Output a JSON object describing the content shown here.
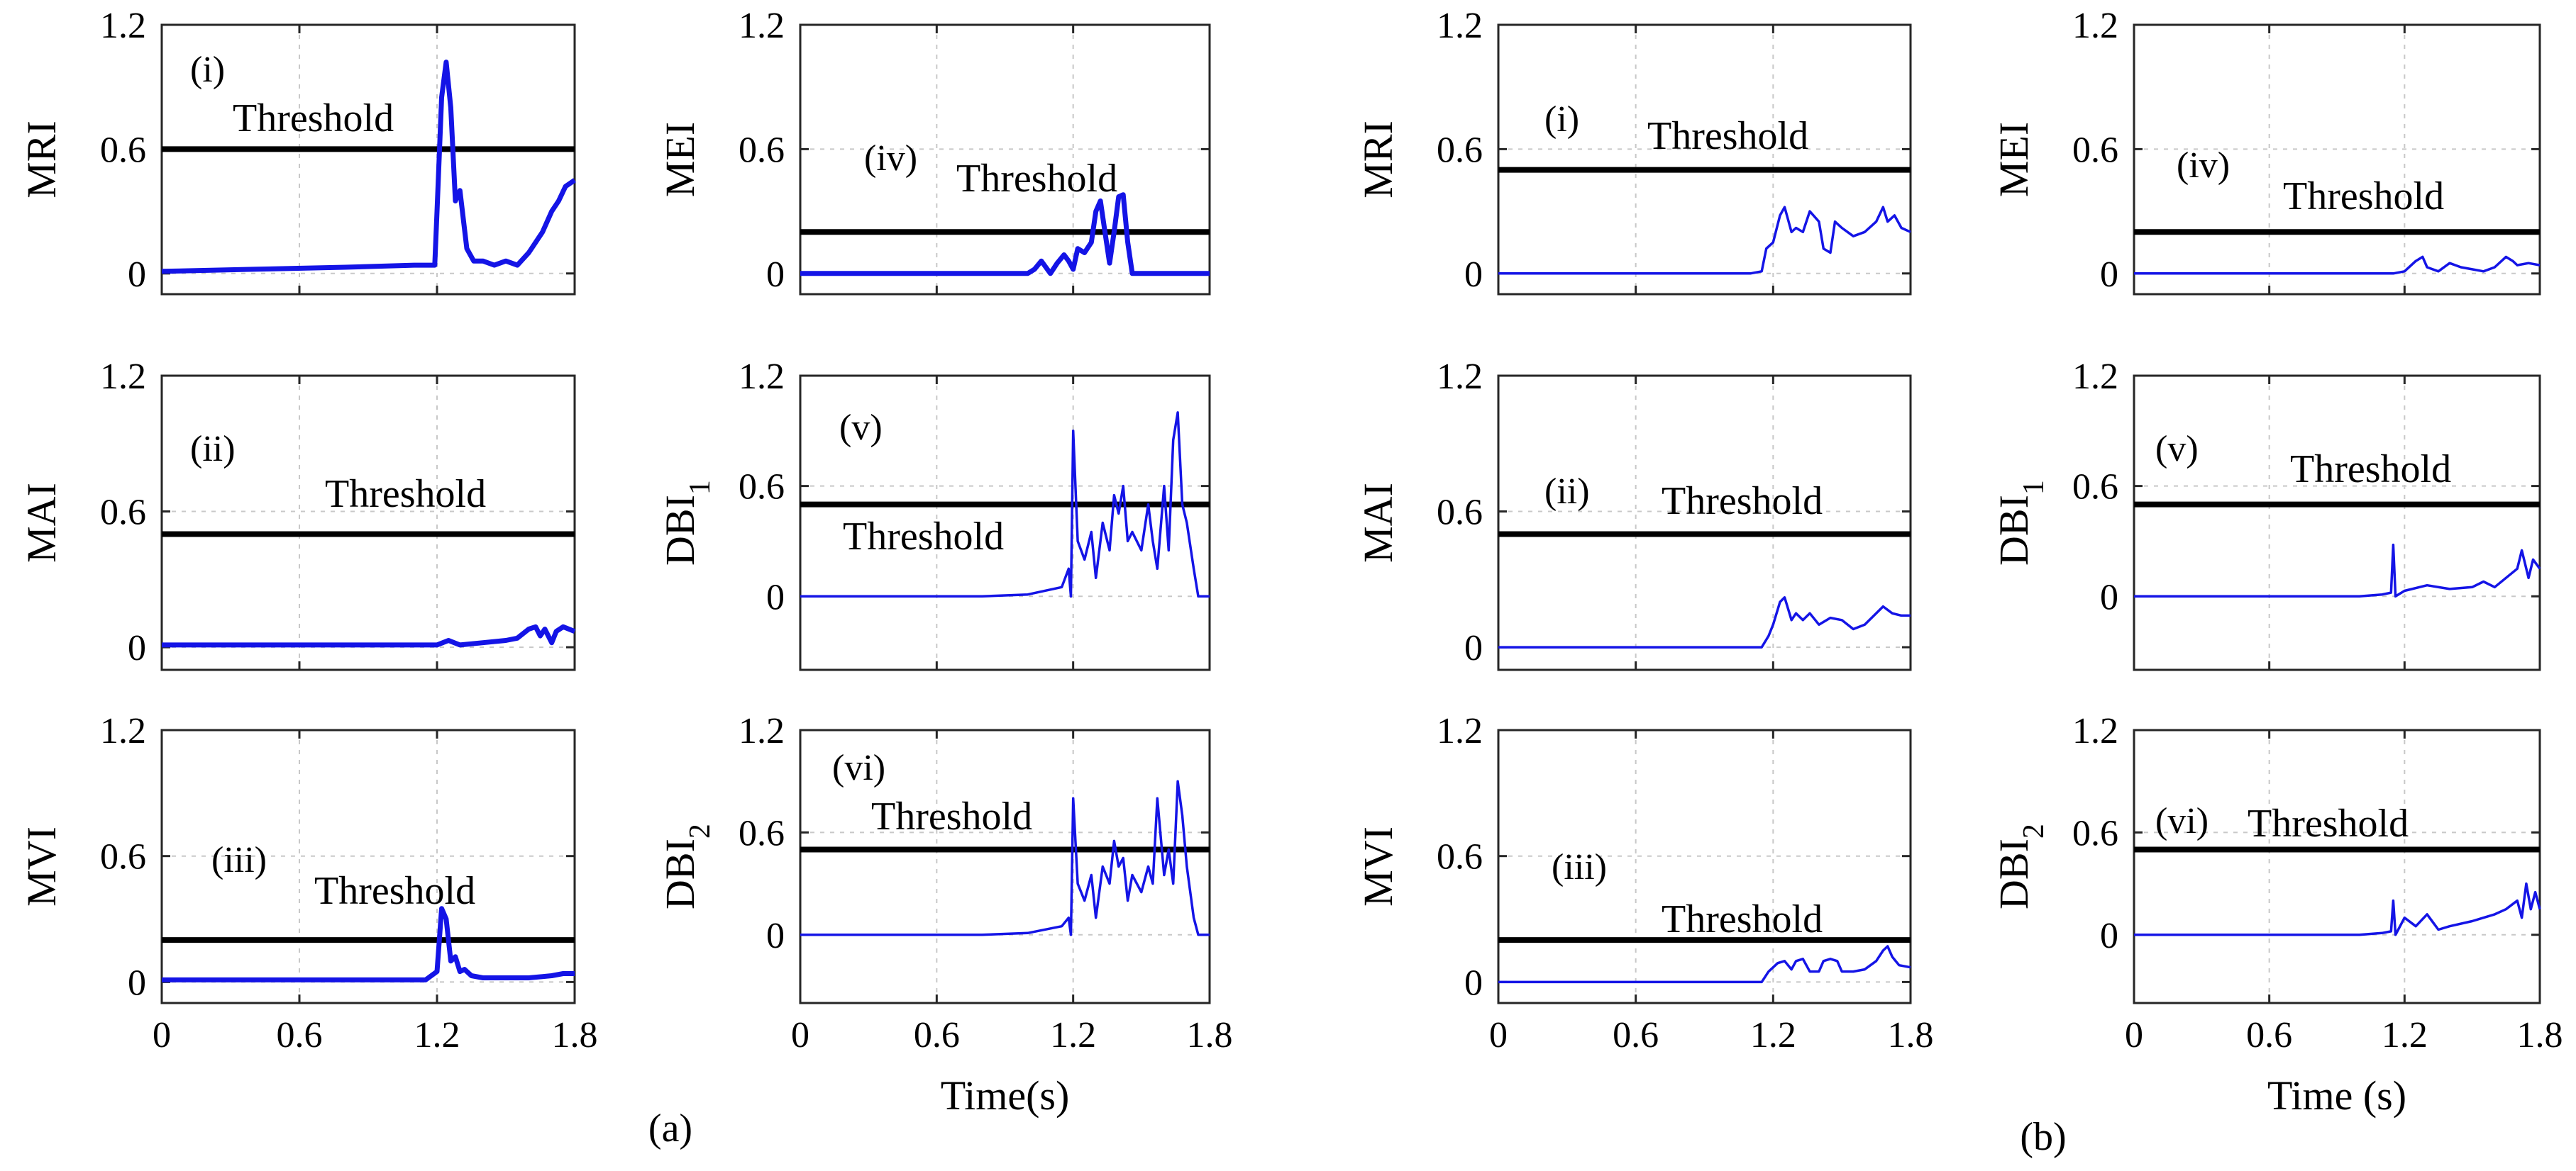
{
  "figure_labels": {
    "a": "(a)",
    "b": "(b)"
  },
  "time_label_a": "Time(s)",
  "time_label_b": "Time (s)",
  "chart_data": [
    {
      "id": "a-MRI",
      "type": "line",
      "panel": "(i)",
      "ylabel": "MRI",
      "xlabel": "",
      "threshold": 0.6,
      "threshold_label": "Threshold",
      "xlim": [
        0,
        1.8
      ],
      "ylim": [
        -0.1,
        1.2
      ],
      "xticks": [
        "0",
        "0.6",
        "1.2",
        "1.8"
      ],
      "yticks": [
        "0",
        "0.6",
        "1.2"
      ],
      "width": "thick",
      "style": "smooth",
      "x": [
        0,
        0.4,
        0.8,
        1.1,
        1.19,
        1.2,
        1.22,
        1.24,
        1.26,
        1.28,
        1.3,
        1.33,
        1.36,
        1.4,
        1.45,
        1.5,
        1.55,
        1.6,
        1.63,
        1.66,
        1.7,
        1.73,
        1.76,
        1.8
      ],
      "y": [
        0.01,
        0.02,
        0.03,
        0.04,
        0.04,
        0.3,
        0.85,
        1.02,
        0.8,
        0.35,
        0.4,
        0.12,
        0.06,
        0.06,
        0.04,
        0.06,
        0.04,
        0.1,
        0.15,
        0.2,
        0.3,
        0.35,
        0.42,
        0.45
      ]
    },
    {
      "id": "a-MAI",
      "type": "line",
      "panel": "(ii)",
      "ylabel": "MAI",
      "xlabel": "",
      "threshold": 0.5,
      "threshold_label": "Threshold",
      "xlim": [
        0,
        1.8
      ],
      "ylim": [
        -0.1,
        1.2
      ],
      "xticks": [
        "0",
        "0.6",
        "1.2",
        "1.8"
      ],
      "yticks": [
        "0",
        "0.6",
        "1.2"
      ],
      "width": "thick",
      "style": "smooth",
      "x": [
        0,
        1.2,
        1.25,
        1.3,
        1.4,
        1.5,
        1.55,
        1.6,
        1.63,
        1.65,
        1.67,
        1.7,
        1.72,
        1.75,
        1.8
      ],
      "y": [
        0.01,
        0.01,
        0.03,
        0.01,
        0.02,
        0.03,
        0.04,
        0.08,
        0.09,
        0.05,
        0.08,
        0.02,
        0.07,
        0.09,
        0.07
      ]
    },
    {
      "id": "a-MVI",
      "type": "line",
      "panel": "(iii)",
      "ylabel": "MVI",
      "xlabel": "",
      "threshold": 0.2,
      "threshold_label": "Threshold",
      "xlim": [
        0,
        1.8
      ],
      "ylim": [
        -0.1,
        1.2
      ],
      "xticks": [
        "0",
        "0.6",
        "1.2",
        "1.8"
      ],
      "yticks": [
        "0",
        "0.6",
        "1.2"
      ],
      "width": "thick",
      "style": "smooth",
      "x": [
        0,
        1.15,
        1.2,
        1.22,
        1.24,
        1.26,
        1.28,
        1.3,
        1.32,
        1.35,
        1.4,
        1.5,
        1.6,
        1.7,
        1.75,
        1.8
      ],
      "y": [
        0.01,
        0.01,
        0.05,
        0.35,
        0.3,
        0.1,
        0.12,
        0.05,
        0.06,
        0.03,
        0.02,
        0.02,
        0.02,
        0.03,
        0.04,
        0.04
      ]
    },
    {
      "id": "a-MEI",
      "type": "line",
      "panel": "(iv)",
      "ylabel": "MEI",
      "xlabel": "",
      "threshold": 0.2,
      "threshold_label": "Threshold",
      "xlim": [
        0,
        1.8
      ],
      "ylim": [
        -0.1,
        1.2
      ],
      "xticks": [
        "0",
        "0.6",
        "1.2",
        "1.8"
      ],
      "yticks": [
        "0",
        "0.6",
        "1.2"
      ],
      "width": "thick",
      "style": "smooth",
      "x": [
        0,
        1.0,
        1.03,
        1.06,
        1.08,
        1.1,
        1.13,
        1.16,
        1.18,
        1.2,
        1.22,
        1.25,
        1.28,
        1.3,
        1.32,
        1.34,
        1.36,
        1.38,
        1.4,
        1.42,
        1.44,
        1.46,
        1.5,
        1.8
      ],
      "y": [
        0,
        0,
        0.02,
        0.06,
        0.03,
        0.0,
        0.05,
        0.09,
        0.06,
        0.02,
        0.12,
        0.1,
        0.15,
        0.3,
        0.35,
        0.2,
        0.05,
        0.2,
        0.37,
        0.38,
        0.15,
        0.0,
        0,
        0
      ]
    },
    {
      "id": "a-DBI1",
      "type": "line",
      "panel": "(v)",
      "ylabel": "DBI",
      "ylabel_sub": "1",
      "xlabel": "",
      "threshold": 0.5,
      "threshold_label": "Threshold",
      "xlim": [
        0,
        1.8
      ],
      "ylim": [
        -0.4,
        1.2
      ],
      "xticks": [
        "0",
        "0.6",
        "1.2",
        "1.8"
      ],
      "yticks": [
        "0",
        "0.6",
        "1.2"
      ],
      "width": "thin",
      "style": "spiky",
      "x": [
        0,
        0.8,
        1.0,
        1.15,
        1.18,
        1.19,
        1.2,
        1.22,
        1.25,
        1.28,
        1.3,
        1.33,
        1.36,
        1.38,
        1.4,
        1.42,
        1.44,
        1.46,
        1.5,
        1.53,
        1.55,
        1.57,
        1.6,
        1.62,
        1.64,
        1.66,
        1.68,
        1.7,
        1.73,
        1.75,
        1.8
      ],
      "y": [
        0,
        0,
        0.01,
        0.05,
        0.15,
        0.0,
        0.9,
        0.3,
        0.2,
        0.35,
        0.1,
        0.4,
        0.25,
        0.55,
        0.45,
        0.6,
        0.3,
        0.35,
        0.25,
        0.5,
        0.3,
        0.15,
        0.6,
        0.25,
        0.85,
        1.0,
        0.5,
        0.4,
        0.15,
        0.0,
        0
      ]
    },
    {
      "id": "a-DBI2",
      "type": "line",
      "panel": "(vi)",
      "ylabel": "DBI",
      "ylabel_sub": "2",
      "xlabel": "Time(s)",
      "threshold": 0.5,
      "threshold_label": "Threshold",
      "xlim": [
        0,
        1.8
      ],
      "ylim": [
        -0.4,
        1.2
      ],
      "xticks": [
        "0",
        "0.6",
        "1.2",
        "1.8"
      ],
      "yticks": [
        "0",
        "0.6",
        "1.2"
      ],
      "width": "thin",
      "style": "spiky",
      "x": [
        0,
        0.8,
        1.0,
        1.15,
        1.18,
        1.19,
        1.2,
        1.22,
        1.25,
        1.28,
        1.3,
        1.33,
        1.36,
        1.38,
        1.4,
        1.42,
        1.44,
        1.46,
        1.5,
        1.53,
        1.55,
        1.57,
        1.6,
        1.62,
        1.64,
        1.66,
        1.68,
        1.7,
        1.73,
        1.75,
        1.8
      ],
      "y": [
        0,
        0,
        0.01,
        0.05,
        0.1,
        0.0,
        0.8,
        0.3,
        0.2,
        0.35,
        0.1,
        0.4,
        0.3,
        0.55,
        0.4,
        0.45,
        0.2,
        0.35,
        0.25,
        0.4,
        0.3,
        0.8,
        0.35,
        0.5,
        0.3,
        0.9,
        0.7,
        0.4,
        0.1,
        0.0,
        0
      ]
    },
    {
      "id": "b-MRI",
      "type": "line",
      "panel": "(i)",
      "ylabel": "MRI",
      "xlabel": "",
      "threshold": 0.5,
      "threshold_label": "Threshold",
      "xlim": [
        0,
        1.8
      ],
      "ylim": [
        -0.1,
        1.2
      ],
      "xticks": [
        "0",
        "0.6",
        "1.2",
        "1.8"
      ],
      "yticks": [
        "0",
        "0.6",
        "1.2"
      ],
      "width": "thin",
      "style": "smooth",
      "x": [
        0,
        1.1,
        1.15,
        1.17,
        1.2,
        1.23,
        1.25,
        1.28,
        1.3,
        1.33,
        1.36,
        1.4,
        1.42,
        1.45,
        1.47,
        1.5,
        1.55,
        1.6,
        1.65,
        1.68,
        1.7,
        1.73,
        1.76,
        1.8
      ],
      "y": [
        0,
        0,
        0.01,
        0.12,
        0.15,
        0.28,
        0.32,
        0.2,
        0.22,
        0.2,
        0.3,
        0.25,
        0.12,
        0.1,
        0.25,
        0.22,
        0.18,
        0.2,
        0.25,
        0.32,
        0.25,
        0.28,
        0.22,
        0.2
      ]
    },
    {
      "id": "b-MAI",
      "type": "line",
      "panel": "(ii)",
      "ylabel": "MAI",
      "xlabel": "",
      "threshold": 0.5,
      "threshold_label": "Threshold",
      "xlim": [
        0,
        1.8
      ],
      "ylim": [
        -0.1,
        1.2
      ],
      "xticks": [
        "0",
        "0.6",
        "1.2",
        "1.8"
      ],
      "yticks": [
        "0",
        "0.6",
        "1.2"
      ],
      "width": "thin",
      "style": "smooth",
      "x": [
        0,
        1.15,
        1.18,
        1.2,
        1.23,
        1.25,
        1.28,
        1.3,
        1.33,
        1.36,
        1.4,
        1.45,
        1.5,
        1.55,
        1.6,
        1.65,
        1.68,
        1.72,
        1.76,
        1.8
      ],
      "y": [
        0,
        0,
        0.05,
        0.1,
        0.2,
        0.22,
        0.12,
        0.15,
        0.12,
        0.15,
        0.1,
        0.13,
        0.12,
        0.08,
        0.1,
        0.15,
        0.18,
        0.15,
        0.14,
        0.14
      ]
    },
    {
      "id": "b-MVI",
      "type": "line",
      "panel": "(iii)",
      "ylabel": "MVI",
      "xlabel": "",
      "threshold": 0.2,
      "threshold_label": "Threshold",
      "xlim": [
        0,
        1.8
      ],
      "ylim": [
        -0.1,
        1.2
      ],
      "xticks": [
        "0",
        "0.6",
        "1.2",
        "1.8"
      ],
      "yticks": [
        "0",
        "0.6",
        "1.2"
      ],
      "width": "thin",
      "style": "smooth",
      "x": [
        0,
        1.15,
        1.18,
        1.22,
        1.25,
        1.28,
        1.3,
        1.33,
        1.36,
        1.4,
        1.42,
        1.45,
        1.48,
        1.5,
        1.55,
        1.6,
        1.65,
        1.68,
        1.7,
        1.72,
        1.75,
        1.8
      ],
      "y": [
        0,
        0,
        0.05,
        0.09,
        0.1,
        0.06,
        0.1,
        0.11,
        0.05,
        0.05,
        0.1,
        0.11,
        0.1,
        0.05,
        0.05,
        0.06,
        0.1,
        0.15,
        0.17,
        0.12,
        0.08,
        0.07
      ]
    },
    {
      "id": "b-MEI",
      "type": "line",
      "panel": "(iv)",
      "ylabel": "MEI",
      "xlabel": "",
      "threshold": 0.2,
      "threshold_label": "Threshold",
      "xlim": [
        0,
        1.8
      ],
      "ylim": [
        -0.1,
        1.2
      ],
      "xticks": [
        "0",
        "0.6",
        "1.2",
        "1.8"
      ],
      "yticks": [
        "0",
        "0.6",
        "1.2"
      ],
      "width": "thin",
      "style": "smooth",
      "x": [
        0,
        1.15,
        1.2,
        1.25,
        1.28,
        1.3,
        1.35,
        1.4,
        1.45,
        1.5,
        1.55,
        1.6,
        1.65,
        1.68,
        1.7,
        1.75,
        1.8
      ],
      "y": [
        0,
        0,
        0.01,
        0.06,
        0.08,
        0.03,
        0.01,
        0.05,
        0.03,
        0.02,
        0.01,
        0.03,
        0.08,
        0.06,
        0.04,
        0.05,
        0.04
      ]
    },
    {
      "id": "b-DBI1",
      "type": "line",
      "panel": "(v)",
      "ylabel": "DBI",
      "ylabel_sub": "1",
      "xlabel": "",
      "threshold": 0.5,
      "threshold_label": "Threshold",
      "xlim": [
        0,
        1.8
      ],
      "ylim": [
        -0.4,
        1.2
      ],
      "xticks": [
        "0",
        "0.6",
        "1.2",
        "1.8"
      ],
      "yticks": [
        "0",
        "0.6",
        "1.2"
      ],
      "width": "thin",
      "style": "spiky",
      "x": [
        0,
        1.0,
        1.1,
        1.14,
        1.15,
        1.16,
        1.2,
        1.3,
        1.4,
        1.5,
        1.55,
        1.6,
        1.65,
        1.7,
        1.72,
        1.75,
        1.77,
        1.8
      ],
      "y": [
        0,
        0,
        0.01,
        0.02,
        0.28,
        0.0,
        0.03,
        0.06,
        0.04,
        0.05,
        0.08,
        0.05,
        0.1,
        0.15,
        0.25,
        0.1,
        0.2,
        0.15
      ]
    },
    {
      "id": "b-DBI2",
      "type": "line",
      "panel": "(vi)",
      "ylabel": "DBI",
      "ylabel_sub": "2",
      "xlabel": "Time (s)",
      "threshold": 0.5,
      "threshold_label": "Threshold",
      "xlim": [
        0,
        1.8
      ],
      "ylim": [
        -0.4,
        1.2
      ],
      "xticks": [
        "0",
        "0.6",
        "1.2",
        "1.8"
      ],
      "yticks": [
        "0",
        "0.6",
        "1.2"
      ],
      "width": "thin",
      "style": "spiky",
      "x": [
        0,
        1.0,
        1.1,
        1.14,
        1.15,
        1.16,
        1.2,
        1.25,
        1.3,
        1.35,
        1.4,
        1.5,
        1.55,
        1.6,
        1.65,
        1.7,
        1.72,
        1.74,
        1.76,
        1.78,
        1.8
      ],
      "y": [
        0,
        0,
        0.01,
        0.02,
        0.2,
        0.0,
        0.1,
        0.05,
        0.12,
        0.03,
        0.05,
        0.08,
        0.1,
        0.12,
        0.15,
        0.2,
        0.1,
        0.3,
        0.15,
        0.25,
        0.15
      ]
    }
  ]
}
